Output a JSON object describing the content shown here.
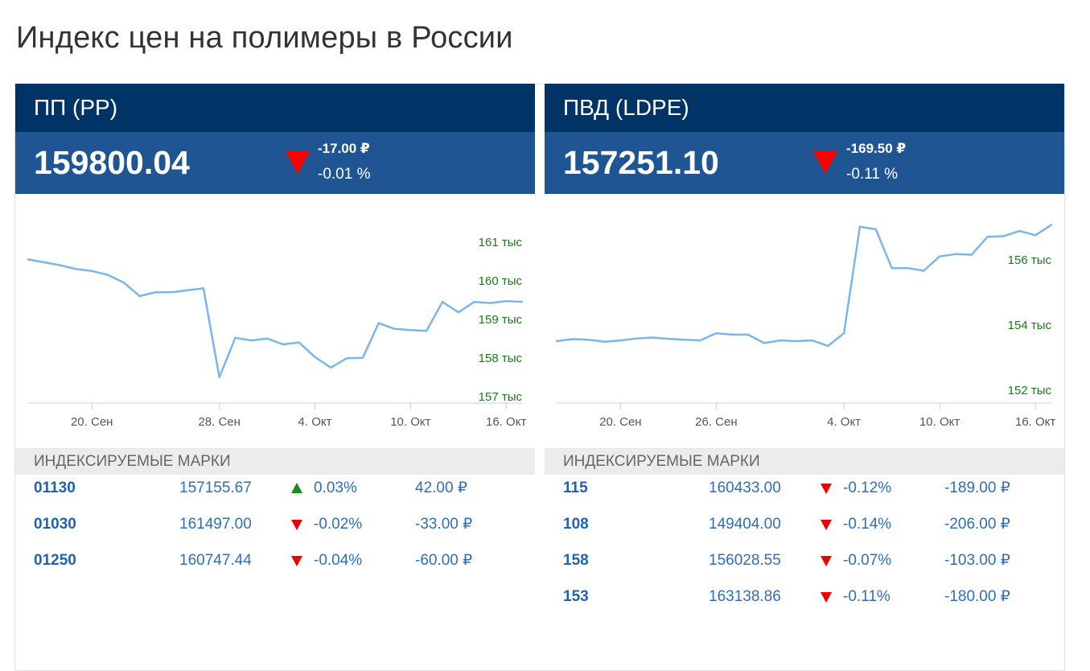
{
  "page": {
    "title": "Индекс цен на полимеры в России"
  },
  "colors": {
    "header_dark": "#003366",
    "header_value": "#1f5592",
    "line": "#7cb5ec",
    "axis_label": "#1a7a1a",
    "down": "#ff0000",
    "up": "#1a8a1a",
    "link": "#1f62b4"
  },
  "panels": [
    {
      "title": "ПП (PP)",
      "value": "159800.04",
      "delta_abs": "-17.00 ₽",
      "delta_pct": "-0.01 %",
      "direction": "down",
      "marks_header": "Индексируемые марки",
      "marks": [
        {
          "code": "01130",
          "price": "157155.67",
          "dir": "up",
          "pct": "0.03%",
          "abs": "42.00 ₽"
        },
        {
          "code": "01030",
          "price": "161497.00",
          "dir": "down",
          "pct": "-0.02%",
          "abs": "-33.00 ₽"
        },
        {
          "code": "01250",
          "price": "160747.44",
          "dir": "down",
          "pct": "-0.04%",
          "abs": "-60.00 ₽"
        }
      ]
    },
    {
      "title": "ПВД (LDPE)",
      "value": "157251.10",
      "delta_abs": "-169.50 ₽",
      "delta_pct": "-0.11 %",
      "direction": "down",
      "marks_header": "Индексируемые марки",
      "marks": [
        {
          "code": "115",
          "price": "160433.00",
          "dir": "down",
          "pct": "-0.12%",
          "abs": "-189.00 ₽"
        },
        {
          "code": "108",
          "price": "149404.00",
          "dir": "down",
          "pct": "-0.14%",
          "abs": "-206.00 ₽"
        },
        {
          "code": "158",
          "price": "156028.55",
          "dir": "down",
          "pct": "-0.07%",
          "abs": "-103.00 ₽"
        },
        {
          "code": "153",
          "price": "163138.86",
          "dir": "down",
          "pct": "-0.11%",
          "abs": "-180.00 ₽"
        }
      ]
    }
  ],
  "chart_data": [
    {
      "type": "line",
      "title": "",
      "x": [
        "2023-09-16",
        "2023-09-18",
        "2023-09-19",
        "2023-09-20",
        "2023-09-21",
        "2023-09-22",
        "2023-09-23",
        "2023-09-24",
        "2023-09-25",
        "2023-09-26",
        "2023-09-27",
        "2023-09-28",
        "2023-09-29",
        "2023-09-30",
        "2023-10-01",
        "2023-10-02",
        "2023-10-03",
        "2023-10-04",
        "2023-10-05",
        "2023-10-06",
        "2023-10-07",
        "2023-10-08",
        "2023-10-09",
        "2023-10-10",
        "2023-10-11",
        "2023-10-12",
        "2023-10-13",
        "2023-10-14",
        "2023-10-15",
        "2023-10-16",
        "2023-10-17"
      ],
      "y": [
        160700,
        160550,
        160450,
        160400,
        160300,
        160100,
        159750,
        159850,
        159850,
        159900,
        159950,
        157650,
        158670,
        158600,
        158650,
        158500,
        158550,
        158170,
        157900,
        158140,
        158150,
        159050,
        158900,
        158870,
        158850,
        159600,
        159330,
        159600,
        159570,
        159620,
        159600
      ],
      "y_ticks": [
        "157 тыс",
        "158 тыс",
        "159 тыс",
        "160 тыс",
        "161 тыс"
      ],
      "x_ticks": [
        "20. Сен",
        "28. Сен",
        "4. Окт",
        "10. Окт",
        "16. Окт"
      ],
      "ylim": [
        157000,
        161000
      ],
      "grid": false,
      "legend": "none"
    },
    {
      "type": "line",
      "title": "",
      "x": [
        "2023-09-16",
        "2023-09-17",
        "2023-09-18",
        "2023-09-19",
        "2023-09-20",
        "2023-09-21",
        "2023-09-22",
        "2023-09-23",
        "2023-09-24",
        "2023-09-25",
        "2023-09-26",
        "2023-09-27",
        "2023-09-28",
        "2023-09-29",
        "2023-09-30",
        "2023-10-01",
        "2023-10-02",
        "2023-10-03",
        "2023-10-04",
        "2023-10-05",
        "2023-10-06",
        "2023-10-07",
        "2023-10-08",
        "2023-10-09",
        "2023-10-10",
        "2023-10-11",
        "2023-10-12",
        "2023-10-13",
        "2023-10-14",
        "2023-10-15",
        "2023-10-16",
        "2023-10-17"
      ],
      "y": [
        153680,
        153740,
        153720,
        153660,
        153700,
        153760,
        153790,
        153750,
        153720,
        153700,
        153920,
        153880,
        153880,
        153620,
        153700,
        153680,
        153700,
        153530,
        153920,
        157190,
        157110,
        155920,
        155920,
        155840,
        156280,
        156350,
        156330,
        156880,
        156900,
        157060,
        156930,
        157250
      ],
      "y_ticks": [
        "152 тыс",
        "154 тыс",
        "156 тыс"
      ],
      "x_ticks": [
        "20. Сен",
        "26. Сен",
        "4. Окт",
        "10. Окт",
        "16. Окт"
      ],
      "ylim": [
        152000,
        157800
      ],
      "grid": false,
      "legend": "none"
    }
  ]
}
